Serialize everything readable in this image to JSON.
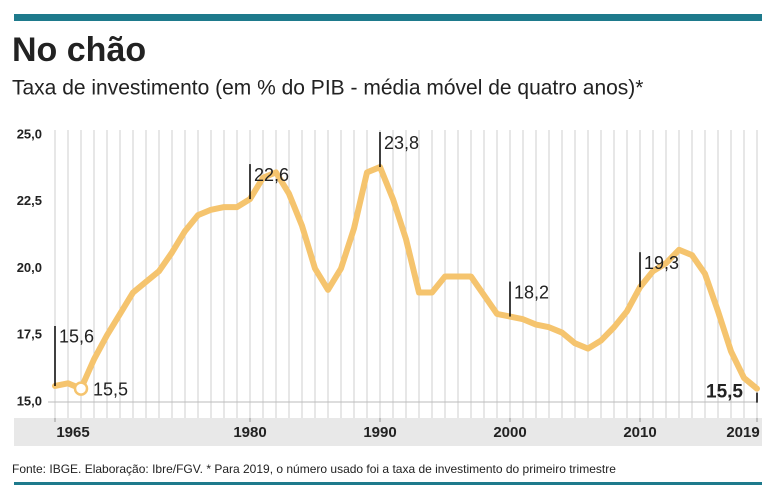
{
  "chart_data": {
    "type": "line",
    "title": "No chão",
    "subtitle": "Taxa de investimento (em % do PIB - média móvel de quatro anos)*",
    "source": "Fonte: IBGE. Elaboração: Ibre/FGV. * Para 2019, o número usado foi a taxa de investimento do primeiro trimestre",
    "x": [
      1965,
      1966,
      1967,
      1968,
      1969,
      1970,
      1971,
      1972,
      1973,
      1974,
      1975,
      1976,
      1977,
      1978,
      1979,
      1980,
      1981,
      1982,
      1983,
      1984,
      1985,
      1986,
      1987,
      1988,
      1989,
      1990,
      1991,
      1992,
      1993,
      1994,
      1995,
      1996,
      1997,
      1998,
      1999,
      2000,
      2001,
      2002,
      2003,
      2004,
      2005,
      2006,
      2007,
      2008,
      2009,
      2010,
      2011,
      2012,
      2013,
      2014,
      2015,
      2016,
      2017,
      2018,
      2019
    ],
    "series": [
      {
        "name": "Taxa de investimento",
        "color": "#f5c46e",
        "values": [
          15.6,
          15.7,
          15.5,
          16.6,
          17.5,
          18.3,
          19.1,
          19.5,
          19.9,
          20.6,
          21.4,
          22.0,
          22.2,
          22.3,
          22.3,
          22.6,
          23.4,
          23.6,
          22.8,
          21.6,
          20.0,
          19.2,
          20.0,
          21.5,
          23.6,
          23.8,
          22.6,
          21.1,
          19.1,
          19.1,
          19.7,
          19.7,
          19.7,
          19.0,
          18.3,
          18.2,
          18.1,
          17.9,
          17.8,
          17.6,
          17.2,
          17.0,
          17.3,
          17.8,
          18.4,
          19.3,
          19.9,
          20.2,
          20.7,
          20.5,
          19.8,
          18.4,
          16.9,
          15.9,
          15.5
        ],
        "value_labels": [
          "15,6",
          null,
          "15,5",
          null,
          null,
          null,
          null,
          null,
          null,
          null,
          null,
          null,
          null,
          null,
          null,
          "22,6",
          null,
          null,
          null,
          null,
          null,
          null,
          null,
          null,
          null,
          "23,8",
          null,
          null,
          null,
          null,
          null,
          null,
          null,
          null,
          null,
          "18,2",
          null,
          null,
          null,
          null,
          null,
          null,
          null,
          null,
          null,
          "19,3",
          null,
          null,
          null,
          null,
          null,
          null,
          null,
          null,
          "15,5"
        ]
      }
    ],
    "marker_x": 1967,
    "xlim": [
      1965,
      2019
    ],
    "xticks": [
      1965,
      1980,
      1990,
      2000,
      2010,
      2019
    ],
    "ylim": [
      15,
      25
    ],
    "yticks": [
      {
        "value": 15,
        "label": "15,0"
      },
      {
        "value": 17.5,
        "label": "17,5"
      },
      {
        "value": 20,
        "label": "20,0"
      },
      {
        "value": 22.5,
        "label": "22,5"
      },
      {
        "value": 25,
        "label": "25,0"
      }
    ]
  }
}
